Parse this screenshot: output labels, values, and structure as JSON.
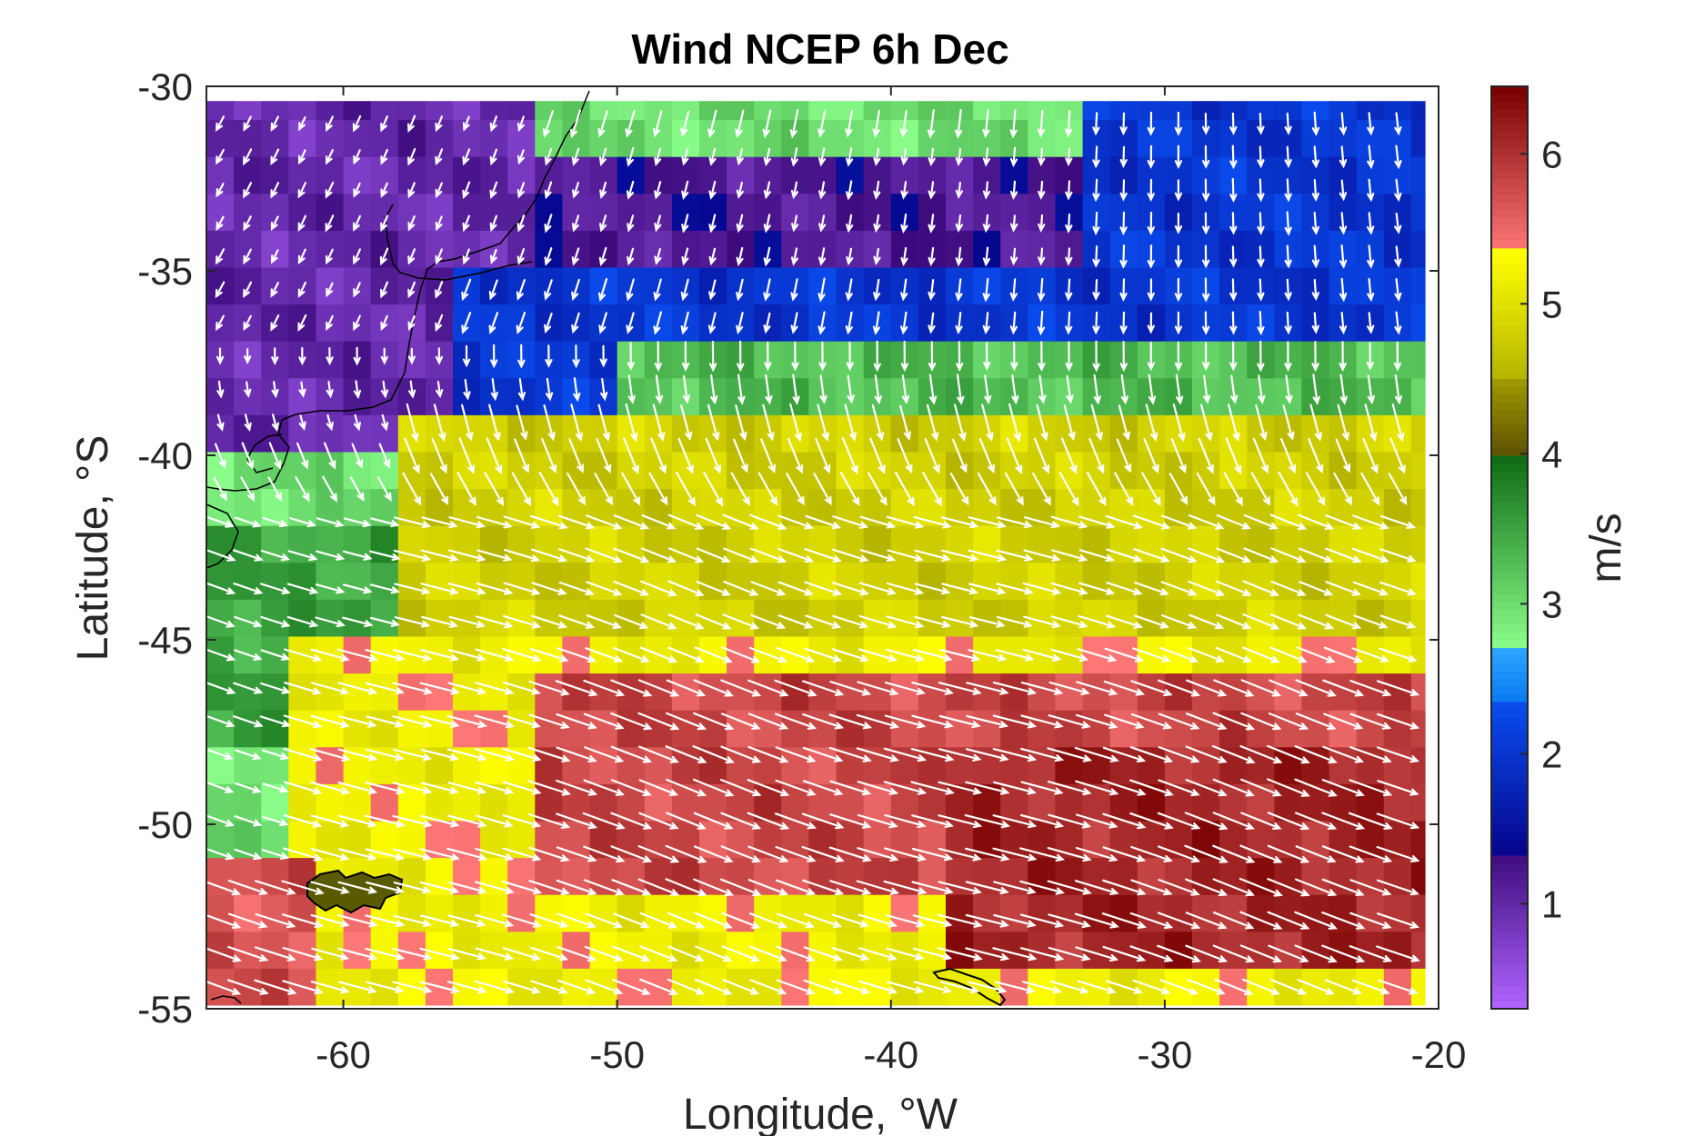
{
  "chart_data": {
    "type": "heatmap",
    "title": "Wind NCEP 6h Dec",
    "xlabel": "Longitude, °W",
    "ylabel": "Latitude, °S",
    "xlim": [
      -65,
      -20
    ],
    "ylim": [
      -55,
      -30
    ],
    "xticks": [
      -60,
      -50,
      -40,
      -30,
      -20
    ],
    "yticks": [
      -30,
      -35,
      -40,
      -45,
      -50,
      -55
    ],
    "colorbar": {
      "label": "m/s",
      "range": [
        0.3,
        6.45
      ],
      "ticks": [
        1,
        2,
        3,
        4,
        5,
        6
      ],
      "bands": [
        {
          "from": 0.3,
          "to": 1.35,
          "colors": [
            "#b065ff",
            "#3c0a7c"
          ]
        },
        {
          "from": 1.35,
          "to": 2.35,
          "colors": [
            "#06068e",
            "#0a4ef0"
          ]
        },
        {
          "from": 2.35,
          "to": 2.7,
          "colors": [
            "#0a7af0",
            "#2ba5ff"
          ]
        },
        {
          "from": 2.7,
          "to": 4.0,
          "colors": [
            "#8bff8b",
            "#0c6a12"
          ]
        },
        {
          "from": 4.0,
          "to": 4.5,
          "colors": [
            "#5e5200",
            "#a09a00"
          ]
        },
        {
          "from": 4.5,
          "to": 5.35,
          "colors": [
            "#b4b400",
            "#ffff00"
          ]
        },
        {
          "from": 5.35,
          "to": 6.45,
          "colors": [
            "#ff7878",
            "#780000"
          ]
        }
      ]
    },
    "grid_spacing_deg": 2,
    "data_lon_range": [
      -65,
      -20.5
    ],
    "data_lat_range": [
      -54.9,
      -30.4
    ],
    "speed_field": {
      "description_of_fields": "approximate wind speed (m/s) regions read from colors",
      "regions": [
        {
          "lon": [
            -65,
            -53
          ],
          "lat": [
            -40,
            -30.4
          ],
          "speed": 1.0
        },
        {
          "lon": [
            -53,
            -33
          ],
          "lat": [
            -37,
            -31.5
          ],
          "speed": 1.2
        },
        {
          "lon": [
            -33,
            -20.5
          ],
          "lat": [
            -35,
            -30.4
          ],
          "speed": 2.0
        },
        {
          "lon": [
            -56,
            -20.5
          ],
          "lat": [
            -39,
            -35
          ],
          "speed": 2.0
        },
        {
          "lon": [
            -50,
            -20.5
          ],
          "lat": [
            -41,
            -37
          ],
          "speed": 3.3
        },
        {
          "lon": [
            -65,
            -50
          ],
          "lat": [
            -48,
            -42
          ],
          "speed": 3.5
        },
        {
          "lon": [
            -58,
            -20.5
          ],
          "lat": [
            -47,
            -39
          ],
          "speed": 4.8
        },
        {
          "lon": [
            -62,
            -20.5
          ],
          "lat": [
            -55,
            -45
          ],
          "speed": 5.2
        },
        {
          "lon": [
            -53,
            -20.5
          ],
          "lat": [
            -52,
            -45.5
          ],
          "speed": 5.8
        },
        {
          "lon": [
            -38,
            -20.5
          ],
          "lat": [
            -54,
            -48
          ],
          "speed": 6.1
        },
        {
          "lon": [
            -65,
            -61
          ],
          "lat": [
            -55,
            -51
          ],
          "speed": 5.7
        }
      ]
    },
    "wind_direction": {
      "north_region": "southward / south-southwest flow (lat > -38)",
      "south_region": "east-southeast flow (lat < -40)"
    },
    "arrow_color": "#ffffff",
    "coastline_color": "#000000"
  }
}
